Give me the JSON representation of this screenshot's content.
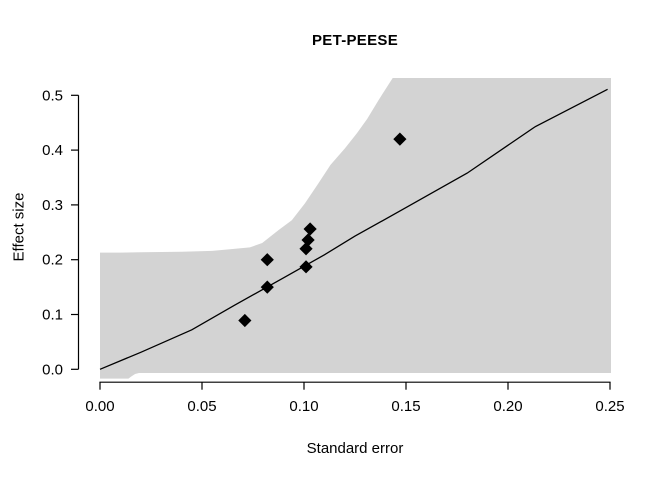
{
  "chart_data": {
    "type": "scatter",
    "title": "PET-PEESE",
    "xlabel": "Standard error",
    "ylabel": "Effect size",
    "xlim": [
      0,
      0.25
    ],
    "ylim": [
      0,
      0.5
    ],
    "grid": false,
    "legend": false,
    "marker": "diamond",
    "colors": {
      "background": "#ffffff",
      "band": "#d3d3d3",
      "line": "#000000",
      "points": "#000000",
      "axis": "#000000"
    },
    "x_ticks": [
      {
        "value": 0.0,
        "label": "0.00"
      },
      {
        "value": 0.05,
        "label": "0.05"
      },
      {
        "value": 0.1,
        "label": "0.10"
      },
      {
        "value": 0.15,
        "label": "0.15"
      },
      {
        "value": 0.2,
        "label": "0.20"
      },
      {
        "value": 0.25,
        "label": "0.25"
      }
    ],
    "y_ticks": [
      {
        "value": 0.0,
        "label": "0.0"
      },
      {
        "value": 0.1,
        "label": "0.1"
      },
      {
        "value": 0.2,
        "label": "0.2"
      },
      {
        "value": 0.3,
        "label": "0.3"
      },
      {
        "value": 0.4,
        "label": "0.4"
      },
      {
        "value": 0.5,
        "label": "0.5"
      }
    ],
    "points": [
      {
        "se": 0.071,
        "effect": 0.089
      },
      {
        "se": 0.082,
        "effect": 0.15
      },
      {
        "se": 0.082,
        "effect": 0.2
      },
      {
        "se": 0.101,
        "effect": 0.187
      },
      {
        "se": 0.101,
        "effect": 0.22
      },
      {
        "se": 0.102,
        "effect": 0.236
      },
      {
        "se": 0.103,
        "effect": 0.256
      },
      {
        "se": 0.147,
        "effect": 0.42
      }
    ],
    "regression_line": [
      [
        0.0,
        0.0
      ],
      [
        0.02,
        0.031
      ],
      [
        0.045,
        0.072
      ],
      [
        0.066,
        0.117
      ],
      [
        0.09,
        0.167
      ],
      [
        0.11,
        0.209
      ],
      [
        0.125,
        0.243
      ],
      [
        0.15,
        0.295
      ],
      [
        0.18,
        0.358
      ],
      [
        0.2135,
        0.443
      ],
      [
        0.2488,
        0.511
      ]
    ],
    "ci_band_polygon": [
      [
        0.0,
        0.213
      ],
      [
        0.01,
        0.213
      ],
      [
        0.02,
        0.2135
      ],
      [
        0.04,
        0.2145
      ],
      [
        0.055,
        0.216
      ],
      [
        0.065,
        0.2195
      ],
      [
        0.0735,
        0.2225
      ],
      [
        0.0795,
        0.2305
      ],
      [
        0.0875,
        0.254
      ],
      [
        0.094,
        0.272
      ],
      [
        0.1005,
        0.303
      ],
      [
        0.107,
        0.339
      ],
      [
        0.113,
        0.373
      ],
      [
        0.12,
        0.403
      ],
      [
        0.126,
        0.431
      ],
      [
        0.131,
        0.457
      ],
      [
        0.1365,
        0.491
      ],
      [
        0.1435,
        0.5315
      ],
      [
        0.2505,
        0.5315
      ],
      [
        0.2505,
        -0.0068
      ],
      [
        0.0191,
        -0.0068
      ],
      [
        0.0172,
        -0.0085
      ],
      [
        0.0155,
        -0.0125
      ],
      [
        0.0139,
        -0.017
      ],
      [
        0.0,
        -0.017
      ]
    ]
  }
}
